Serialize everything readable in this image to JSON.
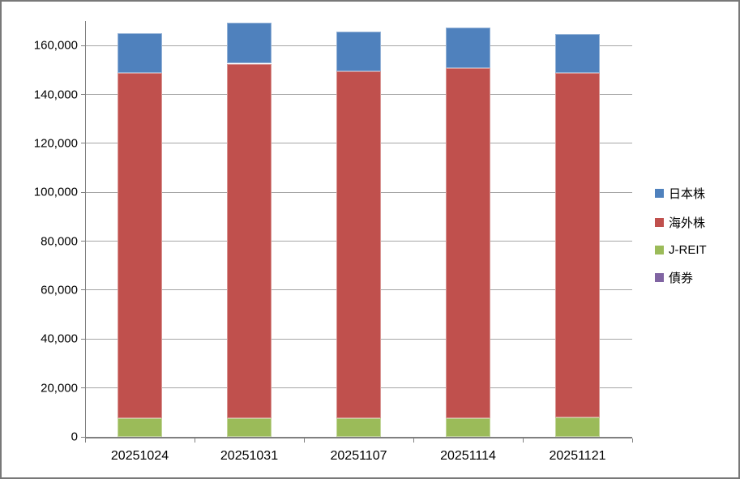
{
  "chart_data": {
    "type": "bar",
    "stacked": true,
    "title": "",
    "xlabel": "",
    "ylabel": "",
    "categories": [
      "20251024",
      "20251031",
      "20251107",
      "20251114",
      "20251121"
    ],
    "series": [
      {
        "name": "日本株",
        "color": "#4F81BD",
        "edge_color": "#95B3D7",
        "values": [
          16000,
          16600,
          16300,
          16700,
          15900
        ]
      },
      {
        "name": "海外株",
        "color": "#C0504D",
        "edge_color": "#D99694",
        "values": [
          141300,
          144900,
          142000,
          143100,
          140900
        ]
      },
      {
        "name": "J-REIT",
        "color": "#9BBB59",
        "edge_color": "#C3D69B",
        "values": [
          7600,
          7700,
          7500,
          7600,
          7900
        ]
      },
      {
        "name": "債券",
        "color": "#8064A2",
        "edge_color": "#B3A2C7",
        "values": [
          0,
          0,
          0,
          0,
          0
        ]
      }
    ],
    "stack_order_bottom_to_top": [
      "債券",
      "J-REIT",
      "海外株",
      "日本株"
    ],
    "totals": [
      164900,
      169200,
      165800,
      167400,
      164700
    ],
    "ylim": [
      0,
      170000
    ],
    "y_major_unit": 20000,
    "y_tick_labels": [
      "0",
      "20,000",
      "40,000",
      "60,000",
      "80,000",
      "100,000",
      "120,000",
      "140,000",
      "160,000"
    ],
    "grid": true,
    "legend_position": "right",
    "colors": {
      "gridline": "#A6A6A6",
      "axis": "#808080",
      "background": "#FFFFFF",
      "frame_border": "#787878",
      "text": "#000000"
    }
  }
}
